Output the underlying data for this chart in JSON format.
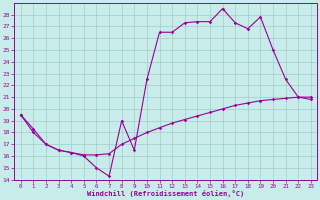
{
  "xlabel": "Windchill (Refroidissement éolien,°C)",
  "xlim": [
    -0.5,
    23.5
  ],
  "ylim": [
    14,
    29
  ],
  "xticks": [
    0,
    1,
    2,
    3,
    4,
    5,
    6,
    7,
    8,
    9,
    10,
    11,
    12,
    13,
    14,
    15,
    16,
    17,
    18,
    19,
    20,
    21,
    22,
    23
  ],
  "yticks": [
    14,
    15,
    16,
    17,
    18,
    19,
    20,
    21,
    22,
    23,
    24,
    25,
    26,
    27,
    28
  ],
  "background_color": "#c8ecea",
  "grid_color": "#a0cccc",
  "line_color": "#990099",
  "curve1_x": [
    0,
    1,
    2,
    3,
    4,
    5,
    6,
    7,
    8,
    9,
    10,
    11,
    12,
    13,
    14,
    15,
    16,
    17,
    18,
    19,
    20,
    21,
    22,
    23
  ],
  "curve1_y": [
    19.5,
    18.0,
    17.0,
    16.5,
    16.3,
    16.0,
    15.0,
    14.3,
    19.0,
    16.5,
    22.5,
    26.5,
    26.5,
    27.3,
    27.4,
    27.4,
    28.5,
    27.3,
    26.8,
    27.8,
    25.0,
    22.5,
    21.0,
    20.8
  ],
  "curve2_x": [
    0,
    1,
    2,
    3,
    4,
    5,
    6,
    7,
    8,
    9,
    10,
    11,
    12,
    13,
    14,
    15,
    16,
    17,
    18,
    19,
    20,
    21,
    22,
    23
  ],
  "curve2_y": [
    19.5,
    18.3,
    17.0,
    16.5,
    16.3,
    16.1,
    16.1,
    16.2,
    17.0,
    17.5,
    18.0,
    18.4,
    18.8,
    19.1,
    19.4,
    19.7,
    20.0,
    20.3,
    20.5,
    20.7,
    20.8,
    20.9,
    21.0,
    21.0
  ]
}
